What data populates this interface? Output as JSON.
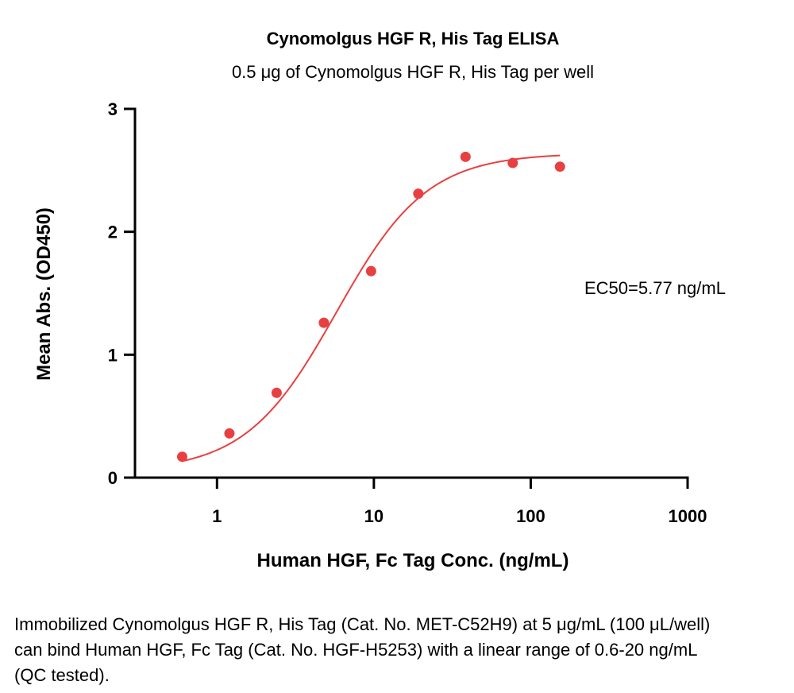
{
  "chart_data": {
    "type": "scatter",
    "title": "Cynomolgus HGF R, His Tag ELISA",
    "subtitle": "0.5 μg of Cynomolgus HGF R, His Tag per well",
    "xlabel": "Human HGF, Fc Tag Conc. (ng/mL)",
    "ylabel": "Mean Abs. (OD450)",
    "x_scale": "log",
    "xlim": [
      0.3,
      1000
    ],
    "ylim": [
      0,
      3
    ],
    "x_ticks": [
      {
        "value": 1,
        "label": "1"
      },
      {
        "value": 10,
        "label": "10"
      },
      {
        "value": 100,
        "label": "100"
      },
      {
        "value": 1000,
        "label": "1000"
      }
    ],
    "y_ticks": [
      {
        "value": 0,
        "label": "0"
      },
      {
        "value": 1,
        "label": "1"
      },
      {
        "value": 2,
        "label": "2"
      },
      {
        "value": 3,
        "label": "3"
      }
    ],
    "series": [
      {
        "color": "#e84040",
        "points": [
          {
            "x": 0.6,
            "y": 0.17
          },
          {
            "x": 1.2,
            "y": 0.36
          },
          {
            "x": 2.4,
            "y": 0.69
          },
          {
            "x": 4.8,
            "y": 1.26
          },
          {
            "x": 9.6,
            "y": 1.68
          },
          {
            "x": 19.2,
            "y": 2.31
          },
          {
            "x": 38.4,
            "y": 2.61
          },
          {
            "x": 76.8,
            "y": 2.56
          },
          {
            "x": 153.6,
            "y": 2.53
          }
        ],
        "fit": {
          "model": "4PL",
          "bottom": 0.05,
          "top": 2.64,
          "ec50": 5.77,
          "hill": 1.5,
          "x_range": [
            0.6,
            153.6
          ]
        }
      }
    ],
    "grid": false,
    "annotation": "EC50=5.77 ng/mL"
  },
  "caption": "Immobilized Cynomolgus HGF R, His Tag (Cat. No. MET-C52H9) at 5 μg/mL (100 μL/well) can bind Human HGF, Fc Tag (Cat. No. HGF-H5253) with a linear range of 0.6-20 ng/mL (QC tested)."
}
